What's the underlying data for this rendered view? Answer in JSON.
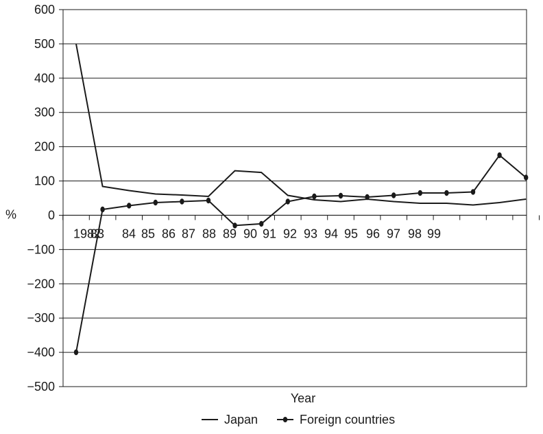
{
  "chart_data": {
    "type": "line",
    "title": "",
    "xlabel": "Year",
    "ylabel": "%",
    "ylim": [
      -500,
      600
    ],
    "yticks": [
      -500,
      -400,
      -300,
      -200,
      -100,
      0,
      100,
      200,
      300,
      400,
      500,
      600
    ],
    "ytick_labels": [
      "−500",
      "−400",
      "−300",
      "−200",
      "−100",
      "0",
      "100",
      "200",
      "300",
      "400",
      "500",
      "600"
    ],
    "x_tick_labels": [
      "1982",
      "83",
      "84",
      "85",
      "86",
      "87",
      "88",
      "89",
      "90",
      "91",
      "92",
      "93",
      "94",
      "95",
      "96",
      "97",
      "98",
      "99"
    ],
    "num_x_positions": 18,
    "grid": true,
    "legend_position": "bottom",
    "series": [
      {
        "name": "Japan",
        "marker": "none",
        "color": "#1a1a1a",
        "values": [
          500,
          84,
          72,
          62,
          59,
          55,
          130,
          125,
          58,
          45,
          40,
          47,
          40,
          35,
          35,
          30,
          37,
          47
        ]
      },
      {
        "name": "Foreign countries",
        "marker": "dot",
        "color": "#1a1a1a",
        "values": [
          -400,
          17,
          28,
          37,
          40,
          43,
          -30,
          -25,
          40,
          55,
          57,
          53,
          58,
          65,
          65,
          68,
          175,
          110
        ]
      }
    ]
  }
}
